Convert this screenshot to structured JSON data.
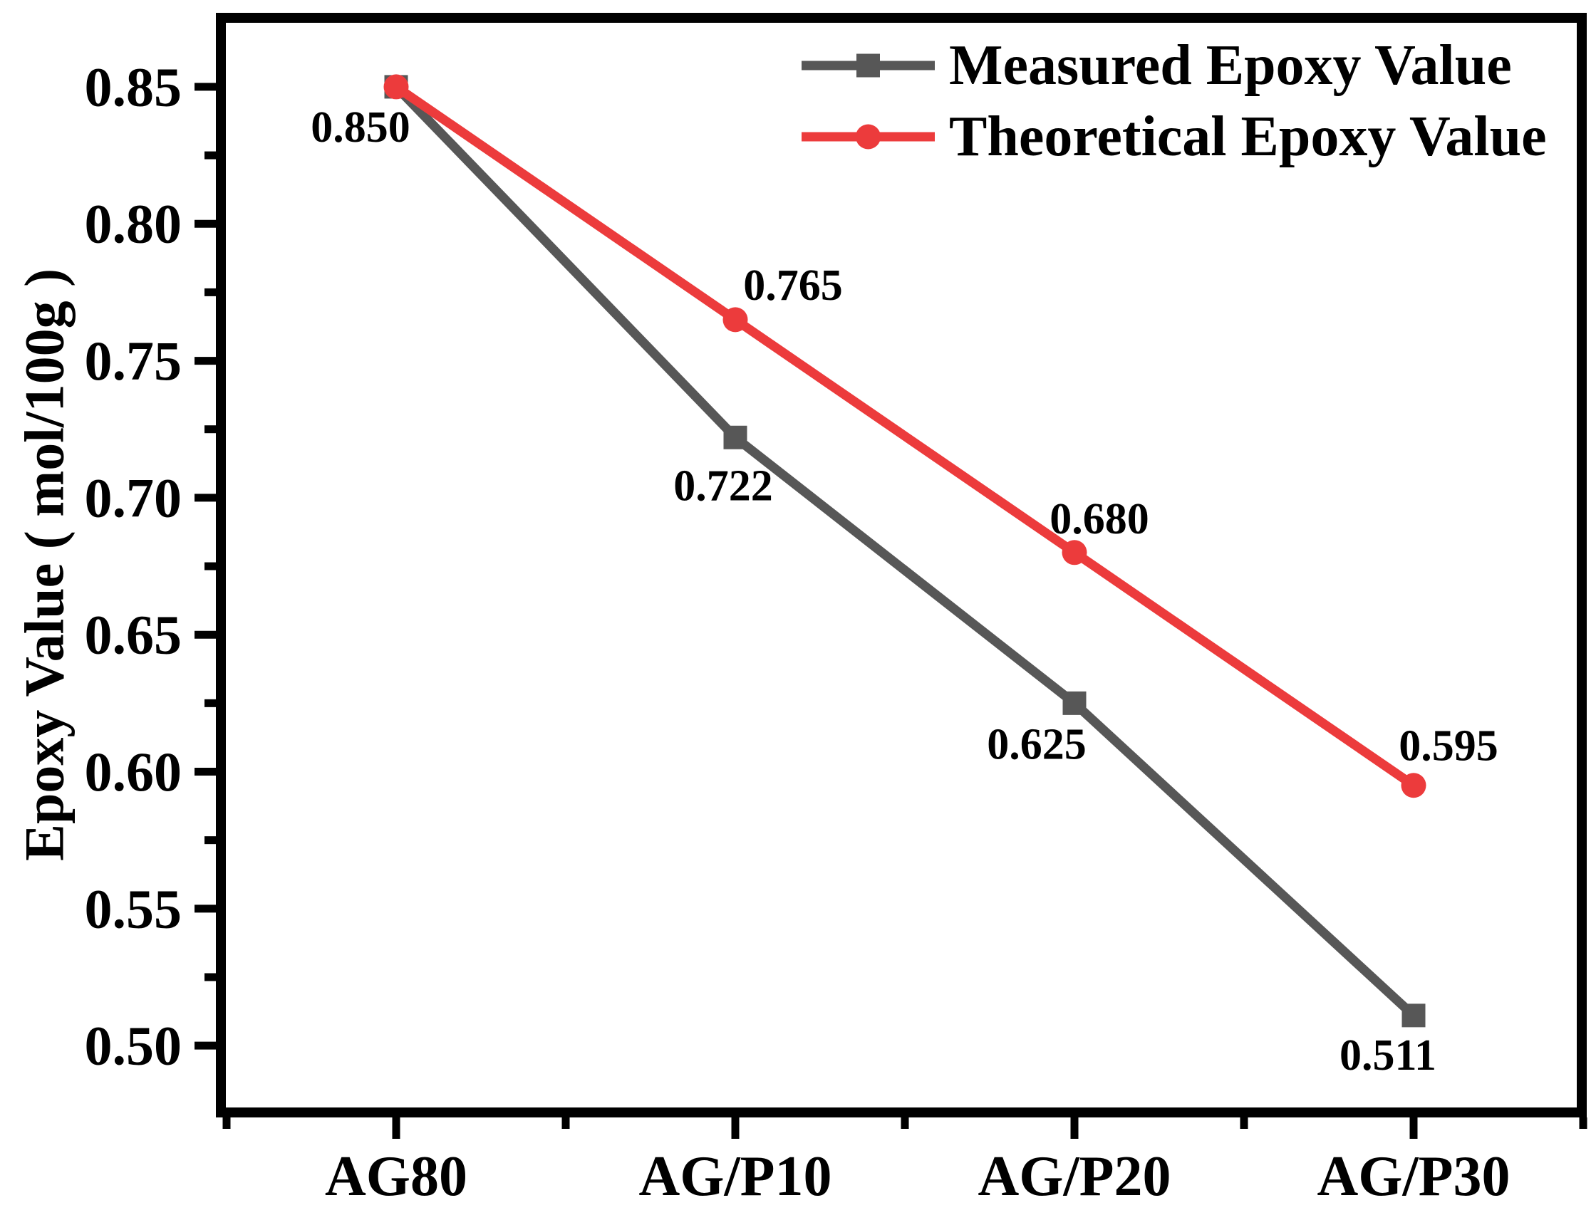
{
  "chart_data": {
    "type": "line",
    "title": "",
    "categories": [
      "AG80",
      "AG/P10",
      "AG/P20",
      "AG/P30"
    ],
    "series": [
      {
        "name": "Measured Epoxy Value",
        "color": "#575757",
        "marker": "square",
        "values": [
          0.85,
          0.722,
          0.625,
          0.511
        ],
        "point_labels": [
          {
            "text": "0.850",
            "dx": -50,
            "dy": 57
          },
          {
            "text": "0.722",
            "dx": -17,
            "dy": 68
          },
          {
            "text": "0.625",
            "dx": -53,
            "dy": 58
          },
          {
            "text": "0.511",
            "dx": -36,
            "dy": 56
          }
        ]
      },
      {
        "name": "Theoretical Epoxy Value",
        "color": "#EC3B3C",
        "marker": "circle",
        "values": [
          0.85,
          0.765,
          0.68,
          0.595
        ],
        "point_labels": [
          null,
          {
            "text": "0.765",
            "dx": 81,
            "dy": -48
          },
          {
            "text": "0.680",
            "dx": 35,
            "dy": -47
          },
          {
            "text": "0.595",
            "dx": 49,
            "dy": -55
          }
        ]
      }
    ],
    "xlabel": "",
    "ylabel": "Epoxy Value ( mol/100g )",
    "ylim": [
      0.4756,
      0.8752
    ],
    "ytick_values": [
      0.85,
      0.8,
      0.75,
      0.7,
      0.65,
      0.6,
      0.55,
      0.5
    ],
    "ytick_labels": [
      "0.85",
      "0.80",
      "0.75",
      "0.70",
      "0.65",
      "0.60",
      "0.55",
      "0.50"
    ],
    "y_minor_step": 0.025,
    "grid": false,
    "legend_position": "top-right",
    "axis_color": "#000000",
    "text_color": "#000000"
  }
}
